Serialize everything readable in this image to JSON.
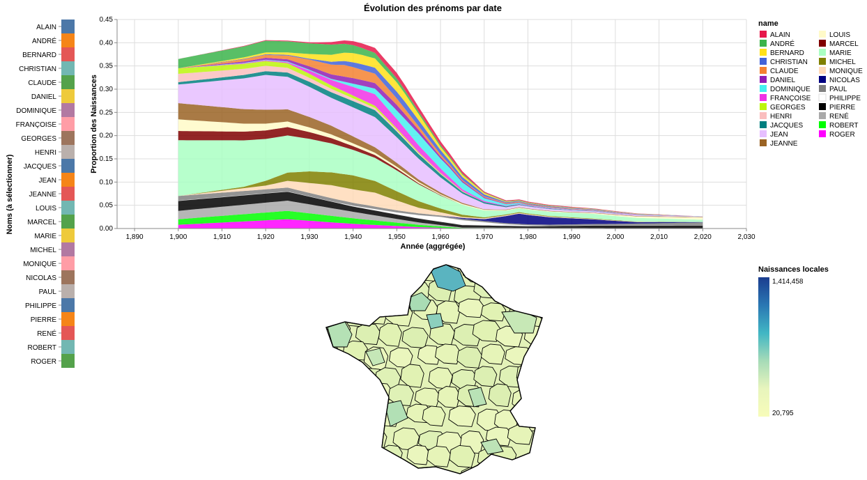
{
  "title": "Évolution des prénoms par date",
  "selector": {
    "axis_title": "Noms (à sélectionner)",
    "names": [
      "ALAIN",
      "ANDRÉ",
      "BERNARD",
      "CHRISTIAN",
      "CLAUDE",
      "DANIEL",
      "DOMINIQUE",
      "FRANÇOISE",
      "GEORGES",
      "HENRI",
      "JACQUES",
      "JEAN",
      "JEANNE",
      "LOUIS",
      "MARCEL",
      "MARIE",
      "MICHEL",
      "MONIQUE",
      "NICOLAS",
      "PAUL",
      "PHILIPPE",
      "PIERRE",
      "RENÉ",
      "ROBERT",
      "ROGER"
    ],
    "colors": [
      "#4c78a8",
      "#f58518",
      "#e45756",
      "#72b7b2",
      "#54a24b",
      "#eeca3b",
      "#b279a2",
      "#ff9da6",
      "#9d755d",
      "#bab0ac",
      "#4c78a8",
      "#f58518",
      "#e45756",
      "#72b7b2",
      "#54a24b",
      "#eeca3b",
      "#b279a2",
      "#ff9da6",
      "#9d755d",
      "#bab0ac",
      "#4c78a8",
      "#f58518",
      "#e45756",
      "#72b7b2",
      "#54a24b"
    ]
  },
  "chart_data": [
    {
      "type": "area",
      "stacked": true,
      "title": "Évolution des prénoms par date",
      "xlabel": "Année (aggrégée)",
      "ylabel": "Proportion des Naissances",
      "xlim": [
        1886,
        2030
      ],
      "ylim": [
        0,
        0.45
      ],
      "x_ticks": [
        "1,890",
        "1,900",
        "1,910",
        "1,920",
        "1,930",
        "1,940",
        "1,950",
        "1,960",
        "1,970",
        "1,980",
        "1,990",
        "2,000",
        "2,010",
        "2,020",
        "2,030"
      ],
      "y_ticks": [
        "0.00",
        "0.05",
        "0.10",
        "0.15",
        "0.20",
        "0.25",
        "0.30",
        "0.35",
        "0.40",
        "0.45"
      ],
      "x_range": [
        1900,
        2020
      ],
      "grid": true,
      "legend_title": "name",
      "legend_position": "right",
      "series": [
        {
          "name": "ROGER",
          "color": "#ff00ff",
          "points": [
            [
              1900,
              0.008
            ],
            [
              1925,
              0.02
            ],
            [
              1940,
              0.01
            ],
            [
              1955,
              0.003
            ],
            [
              1965,
              0.0
            ],
            [
              2020,
              0.0
            ]
          ]
        },
        {
          "name": "ROBERT",
          "color": "#00ff00",
          "points": [
            [
              1900,
              0.012
            ],
            [
              1925,
              0.018
            ],
            [
              1940,
              0.012
            ],
            [
              1955,
              0.005
            ],
            [
              1965,
              0.001
            ],
            [
              2020,
              0.0
            ]
          ]
        },
        {
          "name": "RENÉ",
          "color": "#a9a9a9",
          "points": [
            [
              1900,
              0.018
            ],
            [
              1925,
              0.022
            ],
            [
              1940,
              0.014
            ],
            [
              1955,
              0.005
            ],
            [
              1965,
              0.001
            ],
            [
              2020,
              0.0
            ]
          ]
        },
        {
          "name": "PIERRE",
          "color": "#000000",
          "points": [
            [
              1900,
              0.022
            ],
            [
              1925,
              0.02
            ],
            [
              1940,
              0.012
            ],
            [
              1955,
              0.009
            ],
            [
              1965,
              0.006
            ],
            [
              1980,
              0.004
            ],
            [
              1995,
              0.006
            ],
            [
              2020,
              0.007
            ]
          ]
        },
        {
          "name": "PHILIPPE",
          "color": "#ffffff",
          "points": [
            [
              1900,
              0.0
            ],
            [
              1935,
              0.0
            ],
            [
              1950,
              0.004
            ],
            [
              1960,
              0.01
            ],
            [
              1965,
              0.01
            ],
            [
              1975,
              0.003
            ],
            [
              1985,
              0.0
            ],
            [
              2020,
              0.0
            ]
          ]
        },
        {
          "name": "PAUL",
          "color": "#808080",
          "points": [
            [
              1900,
              0.01
            ],
            [
              1925,
              0.008
            ],
            [
              1940,
              0.006
            ],
            [
              1960,
              0.003
            ],
            [
              1980,
              0.002
            ],
            [
              2000,
              0.003
            ],
            [
              2020,
              0.006
            ]
          ]
        },
        {
          "name": "NICOLAS",
          "color": "#000080",
          "points": [
            [
              1900,
              0.0
            ],
            [
              1960,
              0.0
            ],
            [
              1970,
              0.004
            ],
            [
              1978,
              0.022
            ],
            [
              1985,
              0.016
            ],
            [
              1995,
              0.01
            ],
            [
              2005,
              0.003
            ],
            [
              2020,
              0.001
            ]
          ]
        },
        {
          "name": "MONIQUE",
          "color": "#ffdab9",
          "points": [
            [
              1900,
              0.0
            ],
            [
              1920,
              0.008
            ],
            [
              1935,
              0.028
            ],
            [
              1945,
              0.03
            ],
            [
              1955,
              0.012
            ],
            [
              1965,
              0.002
            ],
            [
              2020,
              0.0
            ]
          ]
        },
        {
          "name": "MICHEL",
          "color": "#808000",
          "points": [
            [
              1900,
              0.0
            ],
            [
              1915,
              0.003
            ],
            [
              1930,
              0.025
            ],
            [
              1940,
              0.03
            ],
            [
              1950,
              0.02
            ],
            [
              1960,
              0.008
            ],
            [
              1970,
              0.002
            ],
            [
              2020,
              0.0
            ]
          ]
        },
        {
          "name": "MARIE",
          "color": "#aaffc3",
          "points": [
            [
              1900,
              0.12
            ],
            [
              1915,
              0.1
            ],
            [
              1930,
              0.07
            ],
            [
              1940,
              0.055
            ],
            [
              1950,
              0.045
            ],
            [
              1960,
              0.028
            ],
            [
              1975,
              0.008
            ],
            [
              1995,
              0.01
            ],
            [
              2020,
              0.005
            ]
          ]
        },
        {
          "name": "MARCEL",
          "color": "#800000",
          "points": [
            [
              1900,
              0.02
            ],
            [
              1925,
              0.018
            ],
            [
              1940,
              0.008
            ],
            [
              1955,
              0.002
            ],
            [
              1965,
              0.0
            ],
            [
              2020,
              0.0
            ]
          ]
        },
        {
          "name": "LOUIS",
          "color": "#fffac8",
          "points": [
            [
              1900,
              0.025
            ],
            [
              1925,
              0.012
            ],
            [
              1940,
              0.006
            ],
            [
              1960,
              0.002
            ],
            [
              1990,
              0.001
            ],
            [
              2020,
              0.005
            ]
          ]
        },
        {
          "name": "JEANNE",
          "color": "#9a6324",
          "points": [
            [
              1900,
              0.035
            ],
            [
              1920,
              0.03
            ],
            [
              1940,
              0.015
            ],
            [
              1955,
              0.005
            ],
            [
              1970,
              0.001
            ],
            [
              2020,
              0.001
            ]
          ]
        },
        {
          "name": "JEAN",
          "color": "#e6beff",
          "points": [
            [
              1900,
              0.04
            ],
            [
              1920,
              0.075
            ],
            [
              1935,
              0.06
            ],
            [
              1945,
              0.065
            ],
            [
              1955,
              0.045
            ],
            [
              1965,
              0.02
            ],
            [
              1975,
              0.005
            ],
            [
              2000,
              0.002
            ],
            [
              2020,
              0.001
            ]
          ]
        },
        {
          "name": "JACQUES",
          "color": "#008080",
          "points": [
            [
              1900,
              0.005
            ],
            [
              1920,
              0.008
            ],
            [
              1935,
              0.012
            ],
            [
              1945,
              0.015
            ],
            [
              1955,
              0.01
            ],
            [
              1965,
              0.004
            ],
            [
              1980,
              0.001
            ],
            [
              2020,
              0.0
            ]
          ]
        },
        {
          "name": "HENRI",
          "color": "#fabebe",
          "points": [
            [
              1900,
              0.018
            ],
            [
              1925,
              0.01
            ],
            [
              1940,
              0.006
            ],
            [
              1955,
              0.002
            ],
            [
              1970,
              0.0
            ],
            [
              2020,
              0.0
            ]
          ]
        },
        {
          "name": "GEORGES",
          "color": "#bcf60c",
          "points": [
            [
              1900,
              0.012
            ],
            [
              1925,
              0.01
            ],
            [
              1940,
              0.006
            ],
            [
              1955,
              0.002
            ],
            [
              1970,
              0.0
            ],
            [
              2020,
              0.0
            ]
          ]
        },
        {
          "name": "FRANÇOISE",
          "color": "#f032e6",
          "points": [
            [
              1900,
              0.0
            ],
            [
              1925,
              0.002
            ],
            [
              1935,
              0.012
            ],
            [
              1945,
              0.025
            ],
            [
              1955,
              0.015
            ],
            [
              1965,
              0.004
            ],
            [
              1975,
              0.001
            ],
            [
              2020,
              0.0
            ]
          ]
        },
        {
          "name": "DOMINIQUE",
          "color": "#46f0f0",
          "points": [
            [
              1900,
              0.0
            ],
            [
              1935,
              0.002
            ],
            [
              1945,
              0.012
            ],
            [
              1955,
              0.025
            ],
            [
              1962,
              0.02
            ],
            [
              1970,
              0.006
            ],
            [
              1980,
              0.001
            ],
            [
              2020,
              0.0
            ]
          ]
        },
        {
          "name": "DANIEL",
          "color": "#911eb4",
          "points": [
            [
              1900,
              0.0
            ],
            [
              1925,
              0.005
            ],
            [
              1940,
              0.012
            ],
            [
              1950,
              0.012
            ],
            [
              1960,
              0.004
            ],
            [
              1975,
              0.001
            ],
            [
              2020,
              0.0
            ]
          ]
        },
        {
          "name": "CLAUDE",
          "color": "#f58231",
          "points": [
            [
              1900,
              0.0
            ],
            [
              1925,
              0.008
            ],
            [
              1938,
              0.025
            ],
            [
              1945,
              0.02
            ],
            [
              1955,
              0.008
            ],
            [
              1965,
              0.002
            ],
            [
              2020,
              0.0
            ]
          ]
        },
        {
          "name": "CHRISTIAN",
          "color": "#4363d8",
          "points": [
            [
              1900,
              0.0
            ],
            [
              1930,
              0.002
            ],
            [
              1942,
              0.012
            ],
            [
              1952,
              0.015
            ],
            [
              1962,
              0.008
            ],
            [
              1975,
              0.002
            ],
            [
              2020,
              0.0
            ]
          ]
        },
        {
          "name": "BERNARD",
          "color": "#ffe119",
          "points": [
            [
              1900,
              0.0
            ],
            [
              1925,
              0.005
            ],
            [
              1940,
              0.02
            ],
            [
              1950,
              0.02
            ],
            [
              1960,
              0.007
            ],
            [
              1975,
              0.001
            ],
            [
              2020,
              0.0
            ]
          ]
        },
        {
          "name": "ANDRÉ",
          "color": "#3cb44b",
          "points": [
            [
              1900,
              0.02
            ],
            [
              1920,
              0.025
            ],
            [
              1935,
              0.022
            ],
            [
              1945,
              0.012
            ],
            [
              1955,
              0.005
            ],
            [
              1970,
              0.001
            ],
            [
              2020,
              0.0
            ]
          ]
        },
        {
          "name": "ALAIN",
          "color": "#e6194b",
          "points": [
            [
              1900,
              0.0
            ],
            [
              1930,
              0.002
            ],
            [
              1942,
              0.01
            ],
            [
              1950,
              0.012
            ],
            [
              1960,
              0.008
            ],
            [
              1970,
              0.002
            ],
            [
              2020,
              0.0
            ]
          ]
        }
      ]
    }
  ],
  "map": {
    "legend_title": "Naissances locales",
    "legend_max": "1,414,458",
    "legend_min": "20,795",
    "gradient": [
      "#1b3d8f",
      "#2a77b3",
      "#41b6c4",
      "#a6dbb8",
      "#e8f5bd",
      "#f7fcb9"
    ]
  }
}
